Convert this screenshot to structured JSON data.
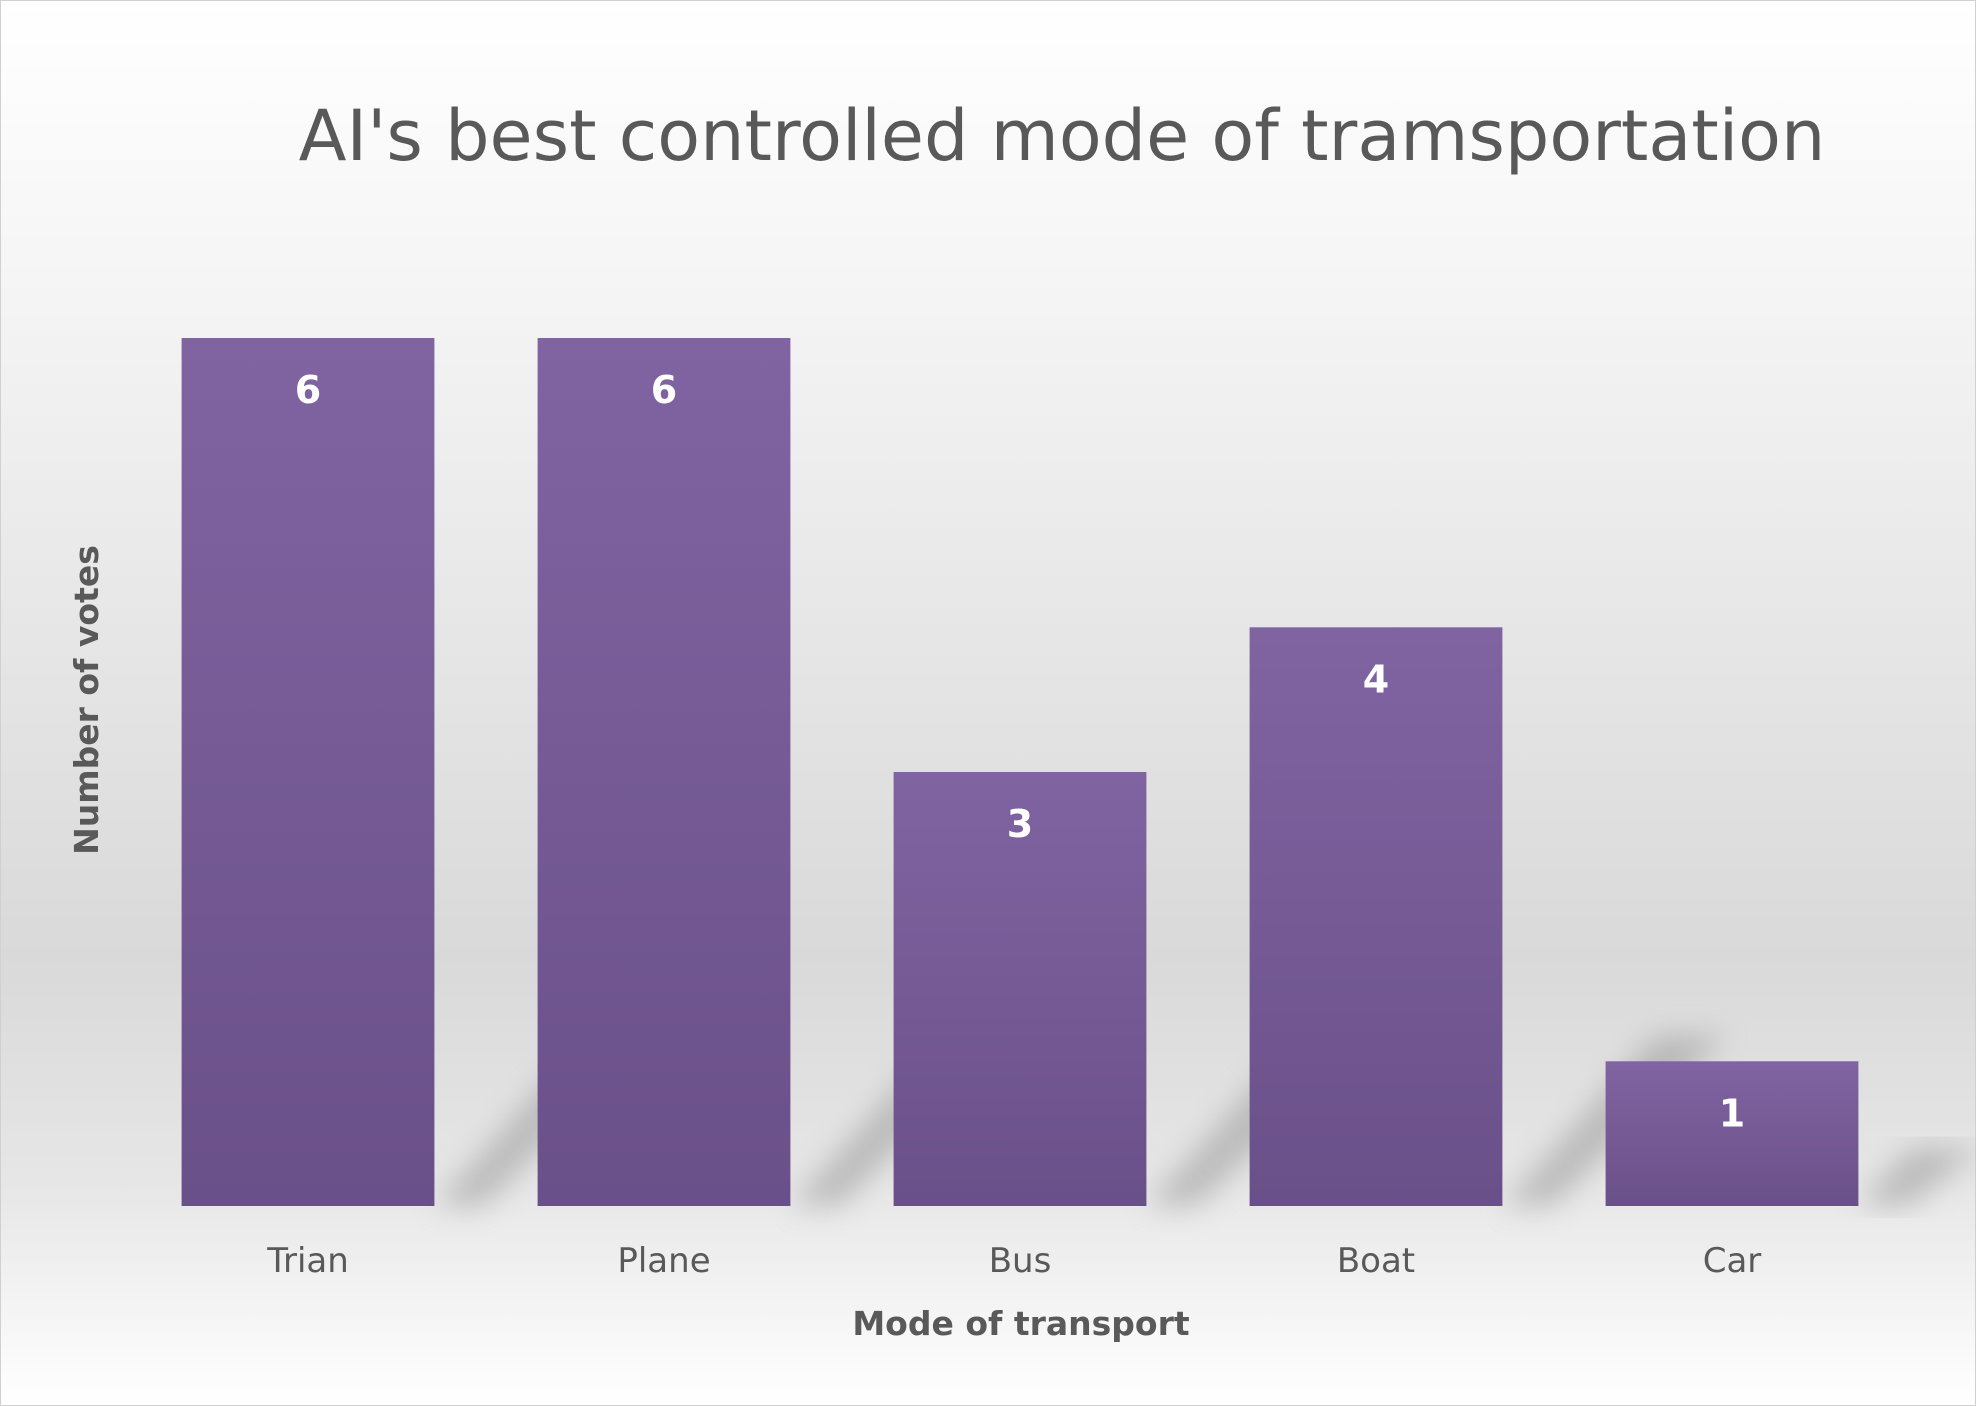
{
  "chart_data": {
    "type": "bar",
    "title": "AI's best controlled mode of tramsportation",
    "xlabel": "Mode of transport",
    "ylabel": "Number of votes",
    "categories": [
      "Trian",
      "Plane",
      "Bus",
      "Boat",
      "Car"
    ],
    "values": [
      6,
      6,
      3,
      4,
      1
    ],
    "ylim": [
      0,
      6
    ],
    "data_labels": [
      "6",
      "6",
      "3",
      "4",
      "1"
    ],
    "grid": false,
    "legend": "none",
    "colors": {
      "bar_top": "#8064a2",
      "bar_bottom": "#6a5089",
      "text": "#595959",
      "label": "#ffffff"
    }
  }
}
